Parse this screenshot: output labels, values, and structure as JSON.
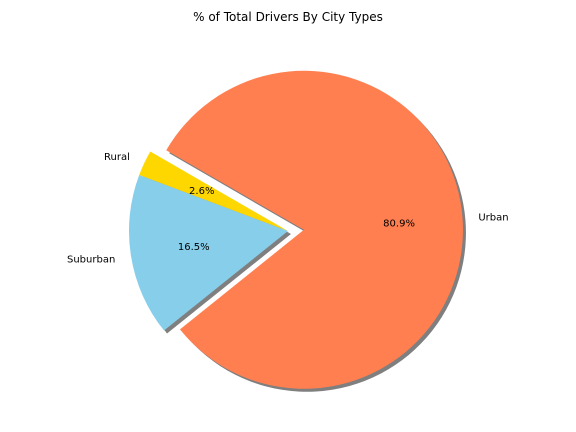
{
  "chart_data": {
    "type": "pie",
    "title": "% of Total Drivers By City Types",
    "slices": [
      {
        "label": "Rural",
        "value": 2.6,
        "pct_text": "2.6%",
        "color": "#FFD700",
        "explode": false
      },
      {
        "label": "Suburban",
        "value": 16.5,
        "pct_text": "16.5%",
        "color": "#87CEEB",
        "explode": false
      },
      {
        "label": "Urban",
        "value": 80.9,
        "pct_text": "80.9%",
        "color": "#FF7F50",
        "explode": true
      }
    ],
    "start_angle_deg": 150,
    "shadow": true
  }
}
